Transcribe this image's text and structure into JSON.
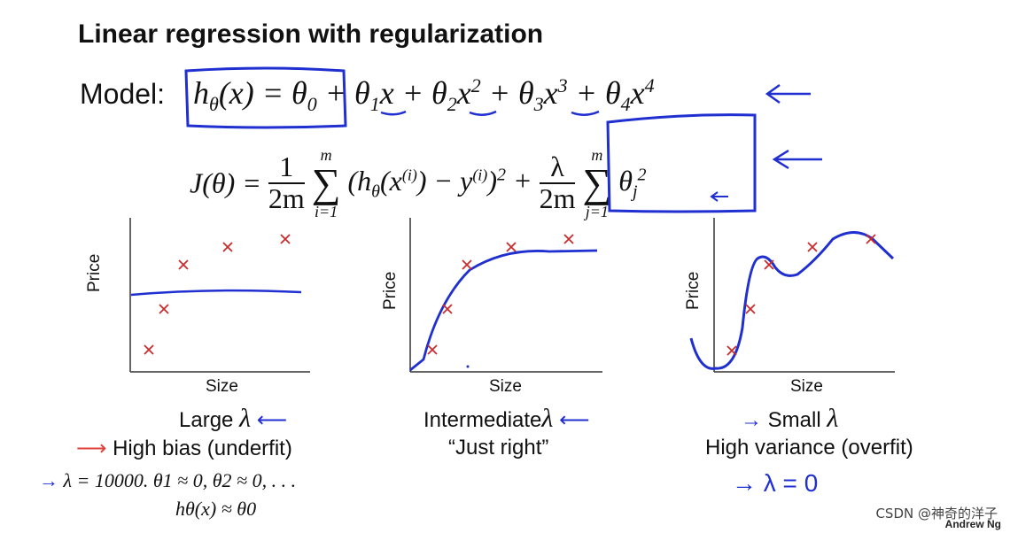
{
  "slide": {
    "title": "Linear regression with regularization",
    "model_label": "Model:",
    "model_equation": "hθ(x) = θ0 + θ1x + θ2x² + θ3x³ + θ4x⁴",
    "cost_equation": "J(θ) = 1/2m Σ_{i=1}^{m} (hθ(x^(i)) − y^(i))² + λ/2m Σ_{j=1}^{m} θj²"
  },
  "panels": [
    {
      "ylabel": "Price",
      "xlabel": "Size",
      "caption_line1": "Large",
      "caption_line2": "High bias (underfit)",
      "note_line1": "λ = 10000. θ1 ≈ 0, θ2 ≈ 0, . . .",
      "note_line2": "hθ(x) ≈ θ0"
    },
    {
      "ylabel": "Price",
      "xlabel": "Size",
      "caption_line1": "Intermediate",
      "caption_line2": "“Just right”"
    },
    {
      "ylabel": "Price",
      "xlabel": "Size",
      "caption_line1": "Small",
      "caption_line2": "High variance (overfit)",
      "note_line1": "λ = 0"
    }
  ],
  "lambda_symbol": "λ",
  "footer": {
    "watermark": "CSDN @神奇的洋子",
    "author": "Andrew Ng"
  },
  "colors": {
    "ink_blue": "#1f2fd0",
    "marker_red": "#cc2b2b",
    "arrow_red": "#e0403a"
  }
}
